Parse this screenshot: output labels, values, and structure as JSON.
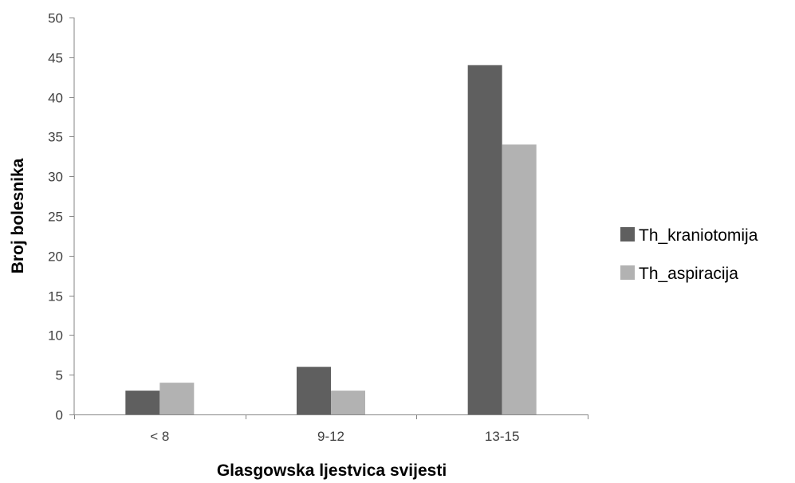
{
  "chart_data": {
    "type": "bar",
    "title": "",
    "xlabel": "Glasgowska ljestvica svijesti",
    "ylabel": "Broj bolesnika",
    "categories": [
      "< 8",
      "9-12",
      "13-15"
    ],
    "series": [
      {
        "name": "Th_kraniotomija",
        "values": [
          3,
          6,
          44
        ],
        "color": "#5f5f5f"
      },
      {
        "name": "Th_aspiracija",
        "values": [
          4,
          3,
          34
        ],
        "color": "#b2b2b2"
      }
    ],
    "ylim": [
      0,
      50
    ],
    "yticks": [
      "0",
      "5",
      "10",
      "15",
      "20",
      "25",
      "30",
      "35",
      "40",
      "45",
      "50"
    ],
    "grid": false,
    "legend": "right"
  }
}
